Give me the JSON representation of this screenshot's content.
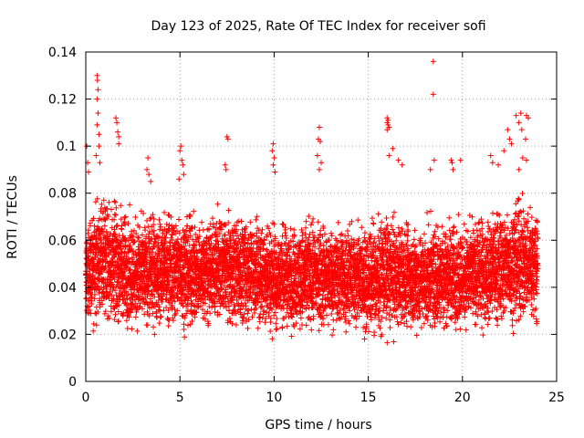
{
  "chart_data": {
    "type": "scatter",
    "title": "Day 123 of 2025, Rate Of TEC Index for receiver sofi",
    "xlabel": "GPS time / hours",
    "ylabel": "ROTI / TECUs",
    "xlim": [
      0,
      25
    ],
    "ylim": [
      0,
      0.14
    ],
    "grid": true,
    "marker": "+",
    "color": "#ff0000",
    "xticks": [
      {
        "value": 0,
        "label": "0"
      },
      {
        "value": 5,
        "label": "5"
      },
      {
        "value": 10,
        "label": "10"
      },
      {
        "value": 15,
        "label": "15"
      },
      {
        "value": 20,
        "label": "20"
      },
      {
        "value": 25,
        "label": "25"
      }
    ],
    "yticks": [
      {
        "value": 0,
        "label": "0"
      },
      {
        "value": 0.02,
        "label": "0.02"
      },
      {
        "value": 0.04,
        "label": "0.04"
      },
      {
        "value": 0.06,
        "label": "0.06"
      },
      {
        "value": 0.08,
        "label": "0.08"
      },
      {
        "value": 0.1,
        "label": "0.1"
      },
      {
        "value": 0.12,
        "label": "0.12"
      },
      {
        "value": 0.14,
        "label": "0.14"
      }
    ],
    "series": [
      {
        "name": "ROTI",
        "x_range": [
          0,
          24
        ],
        "sampling_interval_hours": 0.02,
        "upper_envelope_hourly": [
          0.074,
          0.085,
          0.078,
          0.074,
          0.076,
          0.078,
          0.073,
          0.077,
          0.076,
          0.074,
          0.072,
          0.071,
          0.073,
          0.072,
          0.071,
          0.071,
          0.076,
          0.071,
          0.071,
          0.074,
          0.072,
          0.073,
          0.078,
          0.083,
          0.079
        ],
        "lower_envelope_hourly": [
          0.018,
          0.02,
          0.018,
          0.017,
          0.019,
          0.018,
          0.019,
          0.02,
          0.019,
          0.018,
          0.016,
          0.017,
          0.017,
          0.017,
          0.017,
          0.015,
          0.016,
          0.016,
          0.016,
          0.017,
          0.018,
          0.018,
          0.019,
          0.02,
          0.02
        ],
        "outliers": [
          [
            0.05,
            0.1
          ],
          [
            0.1,
            0.093
          ],
          [
            0.15,
            0.089
          ],
          [
            0.6,
            0.13
          ],
          [
            0.62,
            0.128
          ],
          [
            0.65,
            0.124
          ],
          [
            0.6,
            0.12
          ],
          [
            0.65,
            0.114
          ],
          [
            0.6,
            0.109
          ],
          [
            0.7,
            0.105
          ],
          [
            0.7,
            0.1
          ],
          [
            0.55,
            0.096
          ],
          [
            0.75,
            0.093
          ],
          [
            1.6,
            0.112
          ],
          [
            1.65,
            0.11
          ],
          [
            1.7,
            0.106
          ],
          [
            1.75,
            0.104
          ],
          [
            1.75,
            0.101
          ],
          [
            3.3,
            0.095
          ],
          [
            3.25,
            0.09
          ],
          [
            3.35,
            0.088
          ],
          [
            3.45,
            0.085
          ],
          [
            5.05,
            0.1
          ],
          [
            5.0,
            0.098
          ],
          [
            5.1,
            0.094
          ],
          [
            5.15,
            0.092
          ],
          [
            5.2,
            0.088
          ],
          [
            4.95,
            0.086
          ],
          [
            7.5,
            0.104
          ],
          [
            7.55,
            0.103
          ],
          [
            7.4,
            0.092
          ],
          [
            7.45,
            0.09
          ],
          [
            9.95,
            0.101
          ],
          [
            9.9,
            0.098
          ],
          [
            10.0,
            0.095
          ],
          [
            9.95,
            0.092
          ],
          [
            10.05,
            0.089
          ],
          [
            12.4,
            0.108
          ],
          [
            12.35,
            0.103
          ],
          [
            12.45,
            0.102
          ],
          [
            12.3,
            0.096
          ],
          [
            12.5,
            0.093
          ],
          [
            12.4,
            0.09
          ],
          [
            16.0,
            0.112
          ],
          [
            16.05,
            0.111
          ],
          [
            16.0,
            0.11
          ],
          [
            16.05,
            0.109
          ],
          [
            16.1,
            0.108
          ],
          [
            16.0,
            0.107
          ],
          [
            16.3,
            0.099
          ],
          [
            16.1,
            0.096
          ],
          [
            16.6,
            0.094
          ],
          [
            16.8,
            0.092
          ],
          [
            18.45,
            0.136
          ],
          [
            18.45,
            0.122
          ],
          [
            18.5,
            0.094
          ],
          [
            18.3,
            0.09
          ],
          [
            19.4,
            0.094
          ],
          [
            19.45,
            0.093
          ],
          [
            19.5,
            0.09
          ],
          [
            19.9,
            0.094
          ],
          [
            21.5,
            0.096
          ],
          [
            21.6,
            0.093
          ],
          [
            21.9,
            0.092
          ],
          [
            22.2,
            0.098
          ],
          [
            22.4,
            0.107
          ],
          [
            22.5,
            0.103
          ],
          [
            22.6,
            0.101
          ],
          [
            22.85,
            0.113
          ],
          [
            23.1,
            0.114
          ],
          [
            23.0,
            0.11
          ],
          [
            23.4,
            0.113
          ],
          [
            23.5,
            0.112
          ],
          [
            23.15,
            0.107
          ],
          [
            23.35,
            0.103
          ],
          [
            23.2,
            0.095
          ],
          [
            23.4,
            0.094
          ],
          [
            23.0,
            0.09
          ]
        ]
      }
    ]
  }
}
